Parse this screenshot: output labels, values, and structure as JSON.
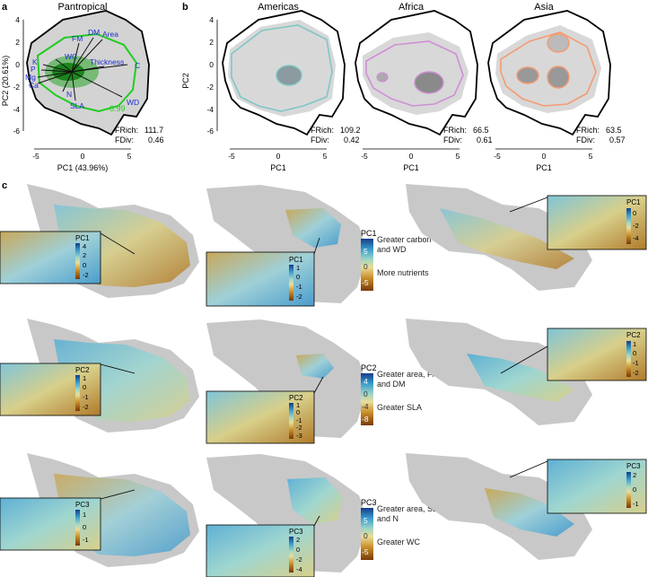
{
  "panel_letters": {
    "a": "a",
    "b": "b",
    "c": "c"
  },
  "panel_a": {
    "title": "Pantropical",
    "xlabel": "PC1 (43.96%)",
    "ylabel": "PC2 (20.61%)",
    "xticks": [
      "-5",
      "0",
      "5"
    ],
    "yticks": [
      "4",
      "2",
      "0",
      "-2",
      "-4",
      "-6"
    ],
    "contour_label": "0.99",
    "traits": [
      "DM",
      "Area",
      "FM",
      "WC",
      "K",
      "P",
      "Mg",
      "Ca",
      "Thickness",
      "C",
      "N",
      "SLA",
      "WD"
    ],
    "frich_label": "FRich:",
    "frich": "111.7",
    "fdiv_label": "FDiv:",
    "fdiv": "0.46",
    "colors": {
      "contour": "#22cc22",
      "arrow_label": "#1f2fd0",
      "hull": "#000000"
    }
  },
  "panel_b": {
    "xlabel": "PC1",
    "ylabel": "PC2",
    "xticks": [
      "-5",
      "0",
      "5"
    ],
    "yticks": [
      "4",
      "2",
      "0",
      "-2",
      "-4",
      "-6"
    ],
    "regions": [
      {
        "title": "Americas",
        "frich_label": "FRich:",
        "frich": "109.2",
        "fdiv_label": "FDiv:",
        "fdiv": "0.42",
        "color": "#7fc7c4"
      },
      {
        "title": "Africa",
        "frich_label": "FRich:",
        "frich": "66.5",
        "fdiv_label": "FDiv:",
        "fdiv": "0.61",
        "color": "#cf8fd6"
      },
      {
        "title": "Asia",
        "frich_label": "FRich:",
        "frich": "63.5",
        "fdiv_label": "FDiv:",
        "fdiv": "0.57",
        "color": "#f59a70"
      }
    ]
  },
  "panel_c": {
    "rows": [
      {
        "component": "PC1",
        "inset_americas_ticks": [
          "4",
          "2",
          "0",
          "-2"
        ],
        "inset_africa_ticks": [
          "1",
          "0",
          "-1",
          "-2"
        ],
        "inset_asia_ticks": [
          "0",
          "-2",
          "-4"
        ],
        "legend_ticks": [
          "5",
          "0",
          "-5"
        ],
        "legend_top_text": "Greater carbon and WD",
        "legend_bottom_text": "More nutrients"
      },
      {
        "component": "PC2",
        "inset_americas_ticks": [
          "1",
          "0",
          "-1",
          "-2"
        ],
        "inset_africa_ticks": [
          "1",
          "0",
          "-1",
          "-2",
          "-3"
        ],
        "inset_asia_ticks": [
          "1",
          "0",
          "-1",
          "-2"
        ],
        "legend_ticks": [
          "4",
          "0",
          "-4",
          "-8"
        ],
        "legend_top_text": "Greater area, FM and DM",
        "legend_bottom_text": "Greater SLA"
      },
      {
        "component": "PC3",
        "inset_americas_ticks": [
          "1",
          "0",
          "-1"
        ],
        "inset_africa_ticks": [
          "2",
          "0",
          "-2",
          "-4"
        ],
        "inset_asia_ticks": [
          "2",
          "0",
          "-1"
        ],
        "legend_ticks": [
          "5",
          "0",
          "-5"
        ],
        "legend_top_text": "Greater area, SLA and N",
        "legend_bottom_text": "Greater WC"
      }
    ],
    "colors": {
      "land": "#c8c8c8",
      "high": "#1f5fa8",
      "mid": "#8fd0cc",
      "low": "#8a4a10"
    }
  }
}
